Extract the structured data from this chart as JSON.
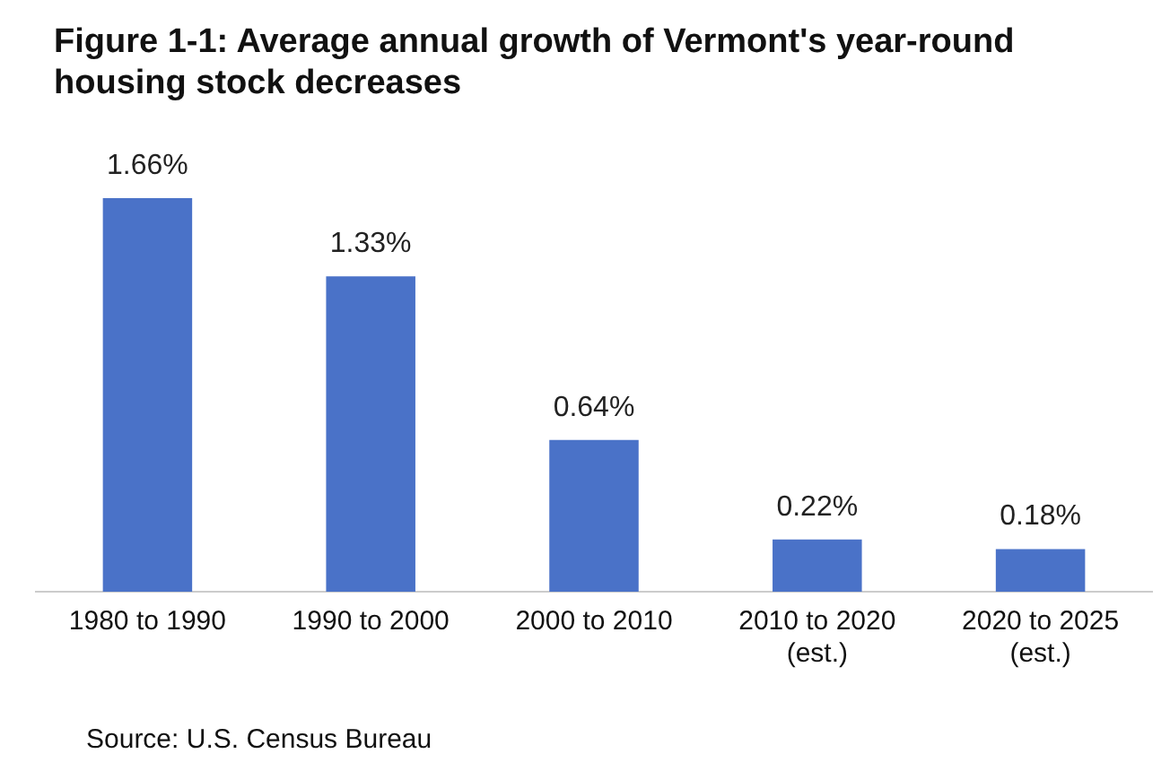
{
  "chart_data": {
    "type": "bar",
    "title": "Figure 1-1: Average annual growth of Vermont's year-round housing stock decreases",
    "categories": [
      "1980 to 1990",
      "1990 to 2000",
      "2000 to 2010",
      "2010 to 2020\n(est.)",
      "2020 to 2025\n(est.)"
    ],
    "values": [
      1.66,
      1.33,
      0.64,
      0.22,
      0.18
    ],
    "value_labels": [
      "1.66%",
      "1.33%",
      "0.64%",
      "0.22%",
      "0.18%"
    ],
    "color": "#4a72c8",
    "grid": false,
    "legend": false,
    "annotations": [
      "Source: U.S. Census Bureau"
    ]
  }
}
